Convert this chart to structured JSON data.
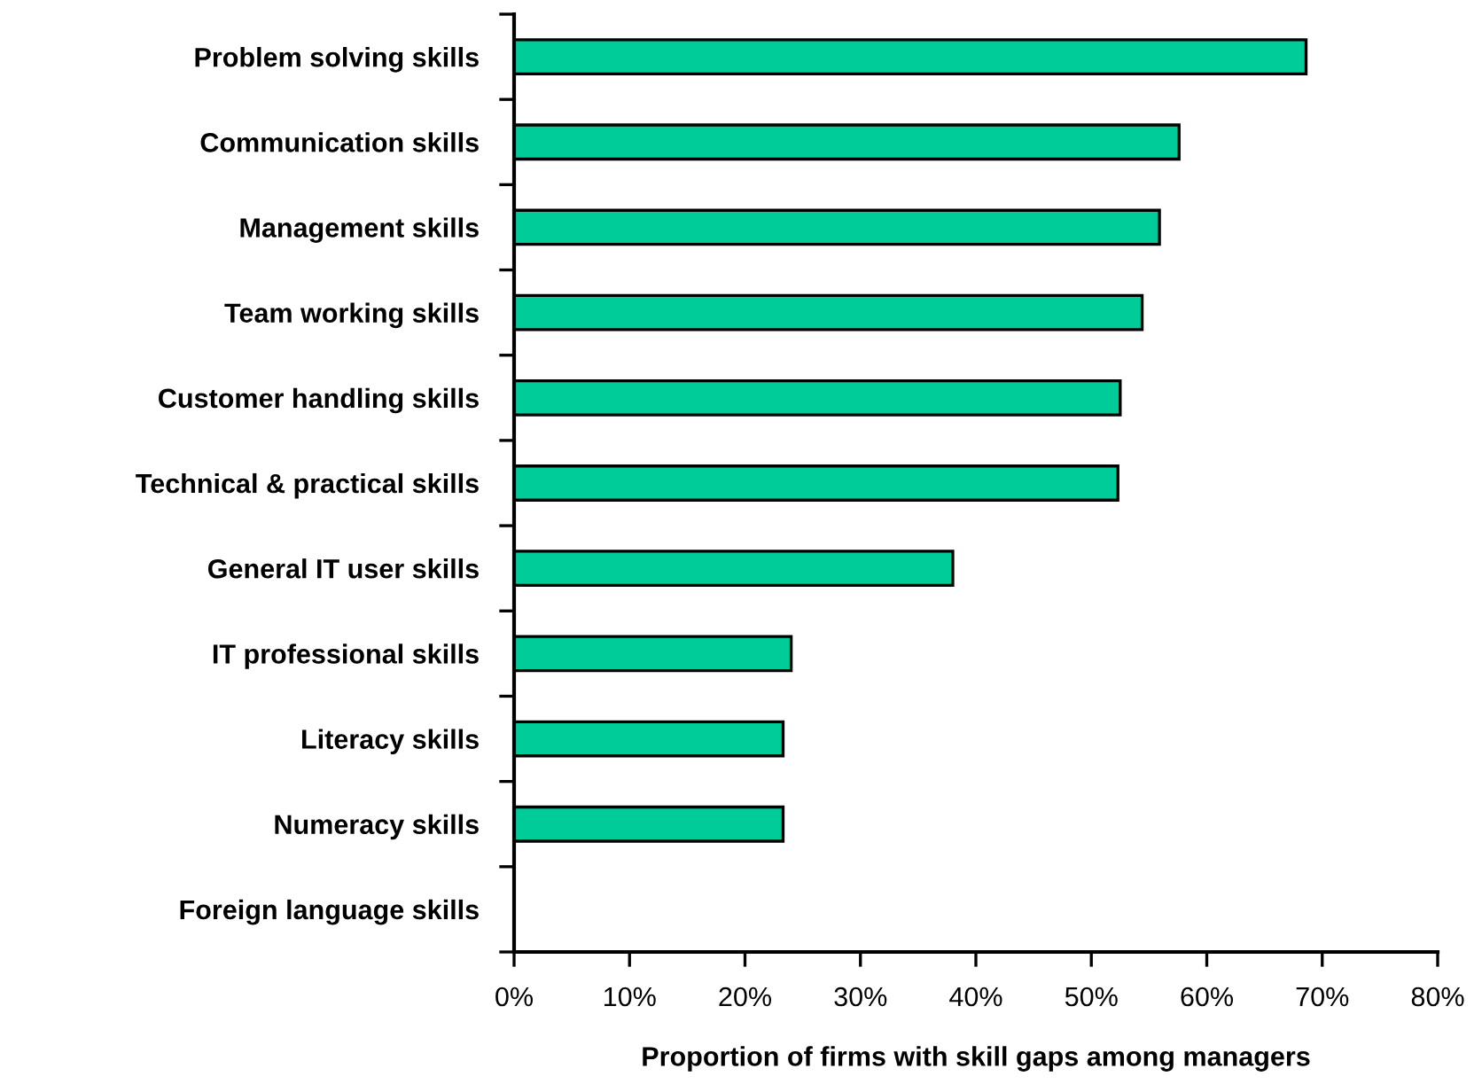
{
  "chart_data": {
    "type": "bar",
    "orientation": "horizontal",
    "xlabel": "Proportion of firms with skill gaps among managers",
    "categories": [
      "Problem solving skills",
      "Communication skills",
      "Management skills",
      "Team working skills",
      "Customer handling skills",
      "Technical & practical skills",
      "General IT user skills",
      "IT professional skills",
      "Literacy skills",
      "Numeracy skills",
      "Foreign language skills"
    ],
    "values": [
      68.6,
      57.6,
      55.9,
      54.4,
      52.5,
      52.3,
      38.0,
      24.0,
      23.3,
      23.3,
      null
    ],
    "color": "#00cc99",
    "xlim": [
      0,
      80
    ],
    "xticks": [
      {
        "value": 0,
        "label": "0%"
      },
      {
        "value": 10,
        "label": "10%"
      },
      {
        "value": 20,
        "label": "20%"
      },
      {
        "value": 30,
        "label": "30%"
      },
      {
        "value": 40,
        "label": "40%"
      },
      {
        "value": 50,
        "label": "50%"
      },
      {
        "value": 60,
        "label": "60%"
      },
      {
        "value": 70,
        "label": "70%"
      },
      {
        "value": 80,
        "label": "80%"
      }
    ],
    "grid": false,
    "legend": false
  }
}
